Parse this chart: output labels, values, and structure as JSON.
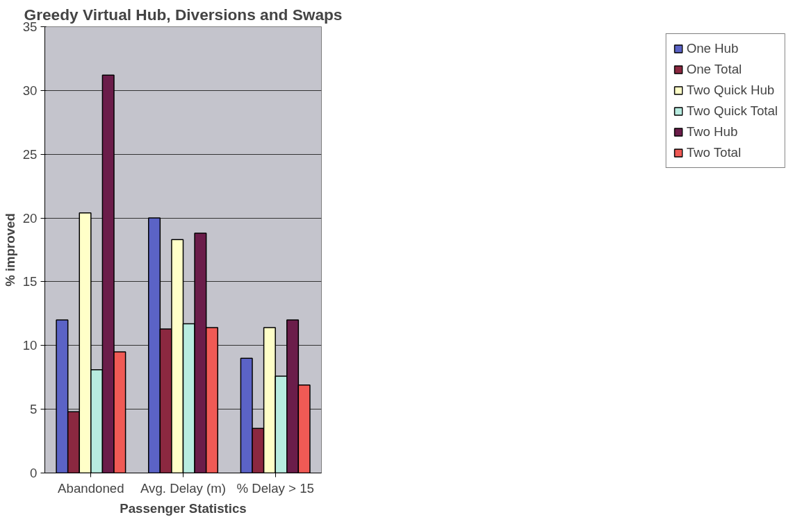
{
  "chart_data": {
    "type": "bar",
    "title": "Greedy Virtual Hub, Diversions and Swaps",
    "xlabel": "Passenger Statistics",
    "ylabel": "% improved",
    "categories": [
      "Abandoned",
      "Avg. Delay (m)",
      "% Delay > 15"
    ],
    "series": [
      {
        "name": "One Hub",
        "color": "#5b63c6",
        "values": [
          12.0,
          20.0,
          9.0
        ]
      },
      {
        "name": "One Total",
        "color": "#8b2840",
        "values": [
          4.8,
          11.3,
          3.5
        ]
      },
      {
        "name": "Two Quick Hub",
        "color": "#ffffc8",
        "values": [
          20.4,
          18.3,
          11.4
        ]
      },
      {
        "name": "Two Quick Total",
        "color": "#b8ece0",
        "values": [
          8.1,
          11.7,
          7.6
        ]
      },
      {
        "name": "Two Hub",
        "color": "#6b1d4a",
        "values": [
          31.2,
          18.8,
          12.0
        ]
      },
      {
        "name": "Two Total",
        "color": "#f05a55",
        "values": [
          9.5,
          11.4,
          6.9
        ]
      }
    ],
    "ylim": [
      0,
      35
    ],
    "yticks": [
      0,
      5,
      10,
      15,
      20,
      25,
      30,
      35
    ],
    "grid": "y",
    "legend": "right"
  }
}
